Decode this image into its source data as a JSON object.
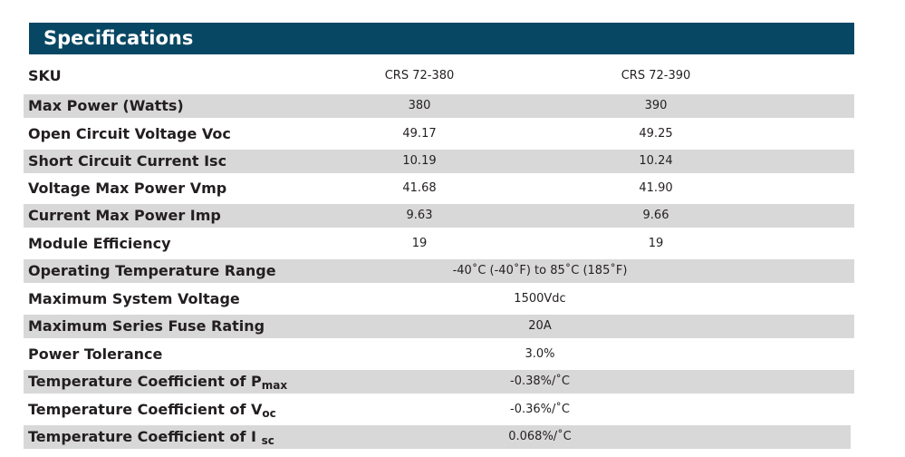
{
  "section_title": "Specifications",
  "columns": [
    "CRS 72-380",
    "CRS 72-390"
  ],
  "sku_label": "SKU",
  "rows": [
    {
      "label": "Max Power (Watts)",
      "values": [
        "380",
        "390"
      ]
    },
    {
      "label": "Open Circuit Voltage Voc",
      "values": [
        "49.17",
        "49.25"
      ]
    },
    {
      "label": "Short Circuit Current Isc",
      "values": [
        "10.19",
        "10.24"
      ]
    },
    {
      "label": "Voltage Max Power Vmp",
      "values": [
        "41.68",
        "41.90"
      ]
    },
    {
      "label": "Current Max Power Imp",
      "values": [
        "9.63",
        "9.66"
      ]
    },
    {
      "label": "Module Efficiency",
      "values": [
        "19",
        "19"
      ]
    },
    {
      "label": "Operating Temperature Range",
      "value": "-40˚C (-40˚F) to 85˚C (185˚F)"
    },
    {
      "label": "Maximum System Voltage",
      "value": "1500Vdc"
    },
    {
      "label": "Maximum Series Fuse Rating",
      "value": "20A"
    },
    {
      "label": "Power Tolerance",
      "value": "3.0%"
    },
    {
      "label": "Temperature Coefficient of P",
      "label_sub": "max",
      "value": "-0.38%/˚C"
    },
    {
      "label": "Temperature Coefficient of V",
      "label_sub": "oc",
      "value": "-0.36%/˚C"
    },
    {
      "label": "Temperature Coefficient of I ",
      "label_sub": "sc",
      "value": "0.068%/˚C"
    }
  ],
  "colors": {
    "header_background": "#084763",
    "header_text": "#ffffff",
    "row_shade": "#d9d8d8",
    "text": "#231f20"
  }
}
